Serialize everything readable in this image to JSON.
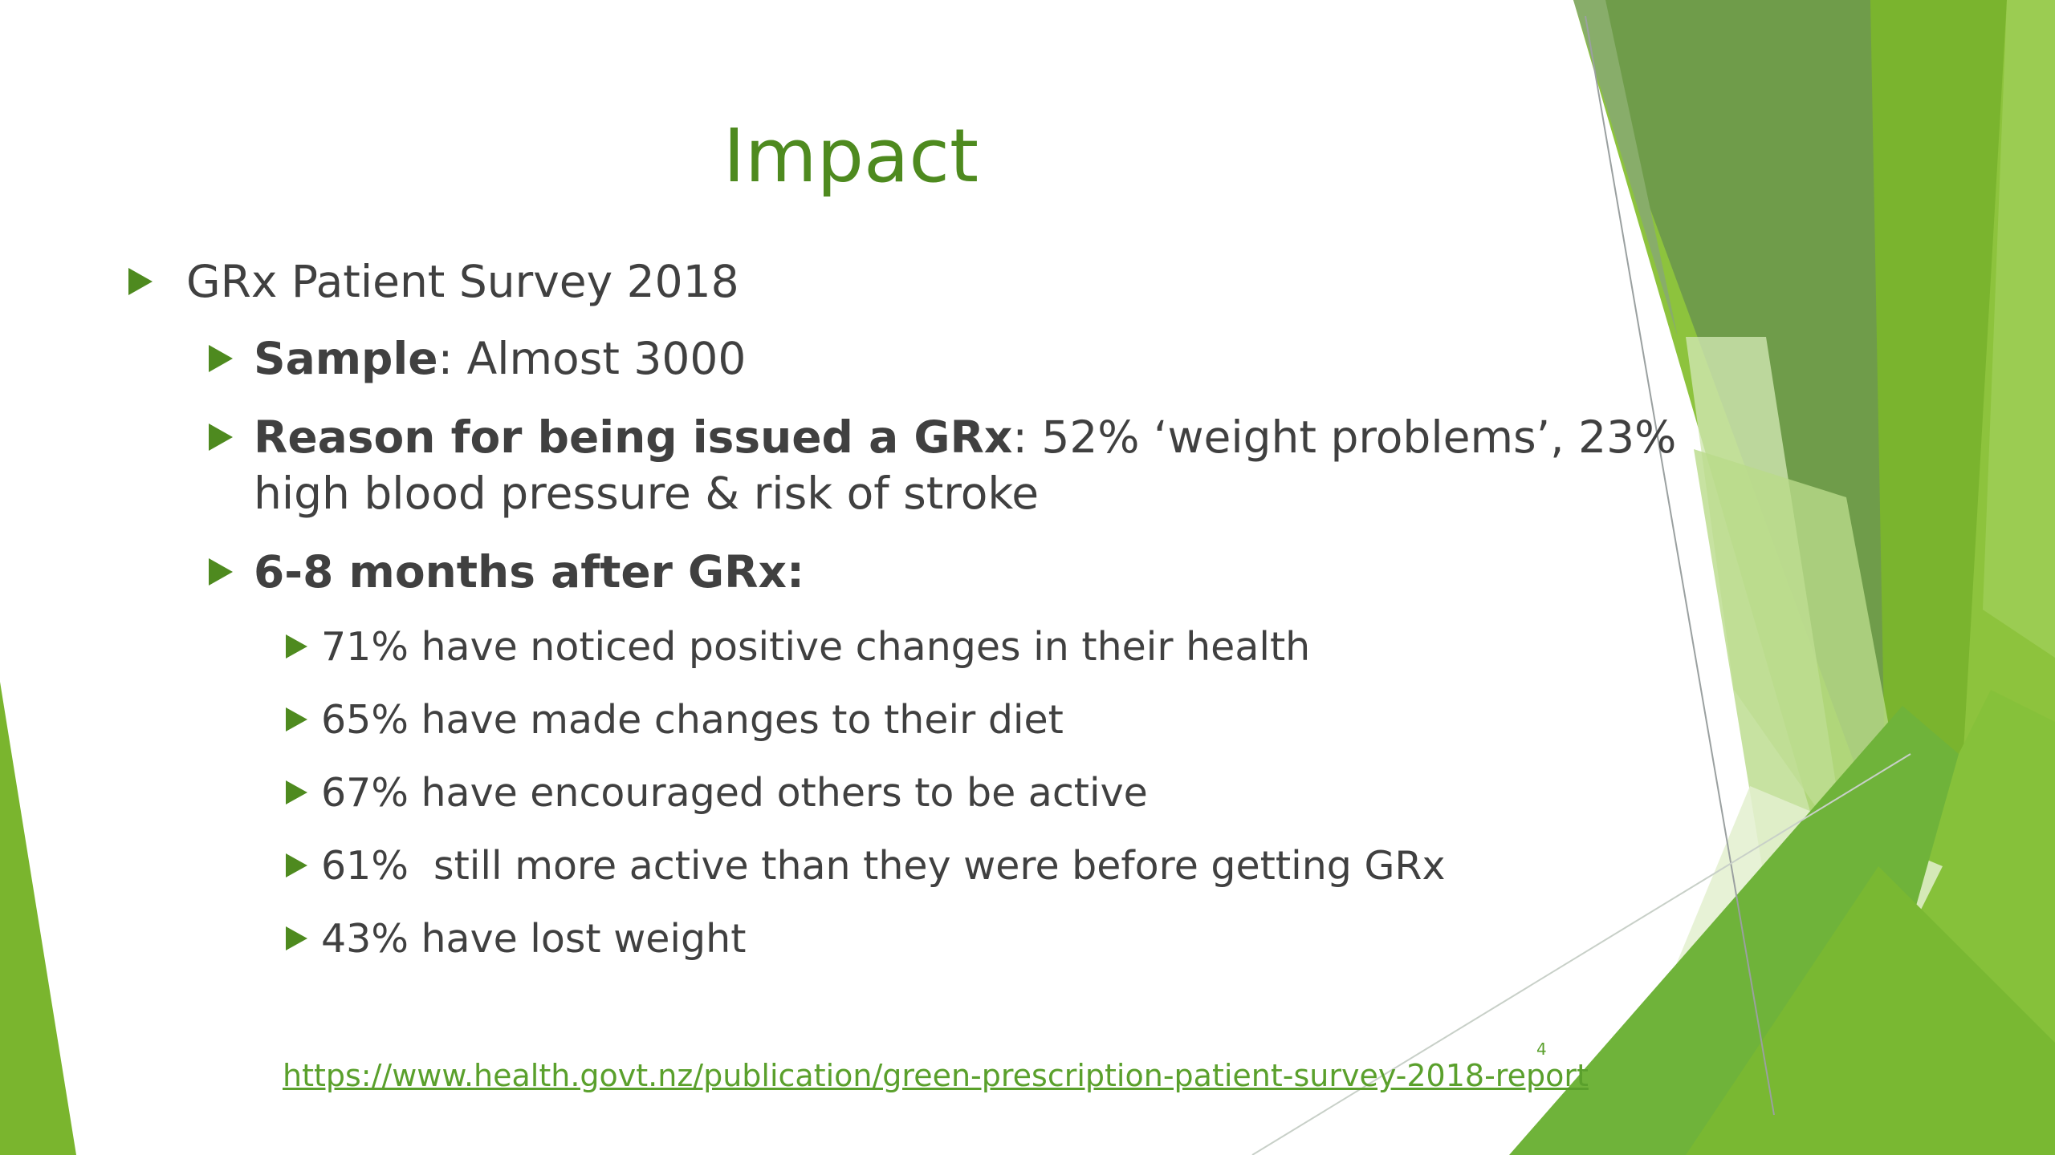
{
  "slide": {
    "title": "Impact",
    "bullets": {
      "survey": "GRx Patient Survey 2018",
      "sample_label": "Sample",
      "sample_value": ": Almost 3000",
      "reason_label": "Reason for being issued a GRx",
      "reason_value": ": 52% ‘weight problems’, 23% high blood pressure & risk of stroke",
      "months_label": "6-8 months after GRx:",
      "results": [
        "71% have noticed positive changes in their health",
        "65% have made changes to their diet",
        "67% have encouraged others to be active",
        "61%  still more active than they were before getting GRx",
        "43% have lost weight"
      ]
    },
    "source_link": "https://www.health.govt.nz/publication/green-prescription-patient-survey-2018-report",
    "page_number": "4",
    "colors": {
      "accent": "#4e8a1f",
      "link": "#5aa02c",
      "text": "#404040"
    }
  }
}
